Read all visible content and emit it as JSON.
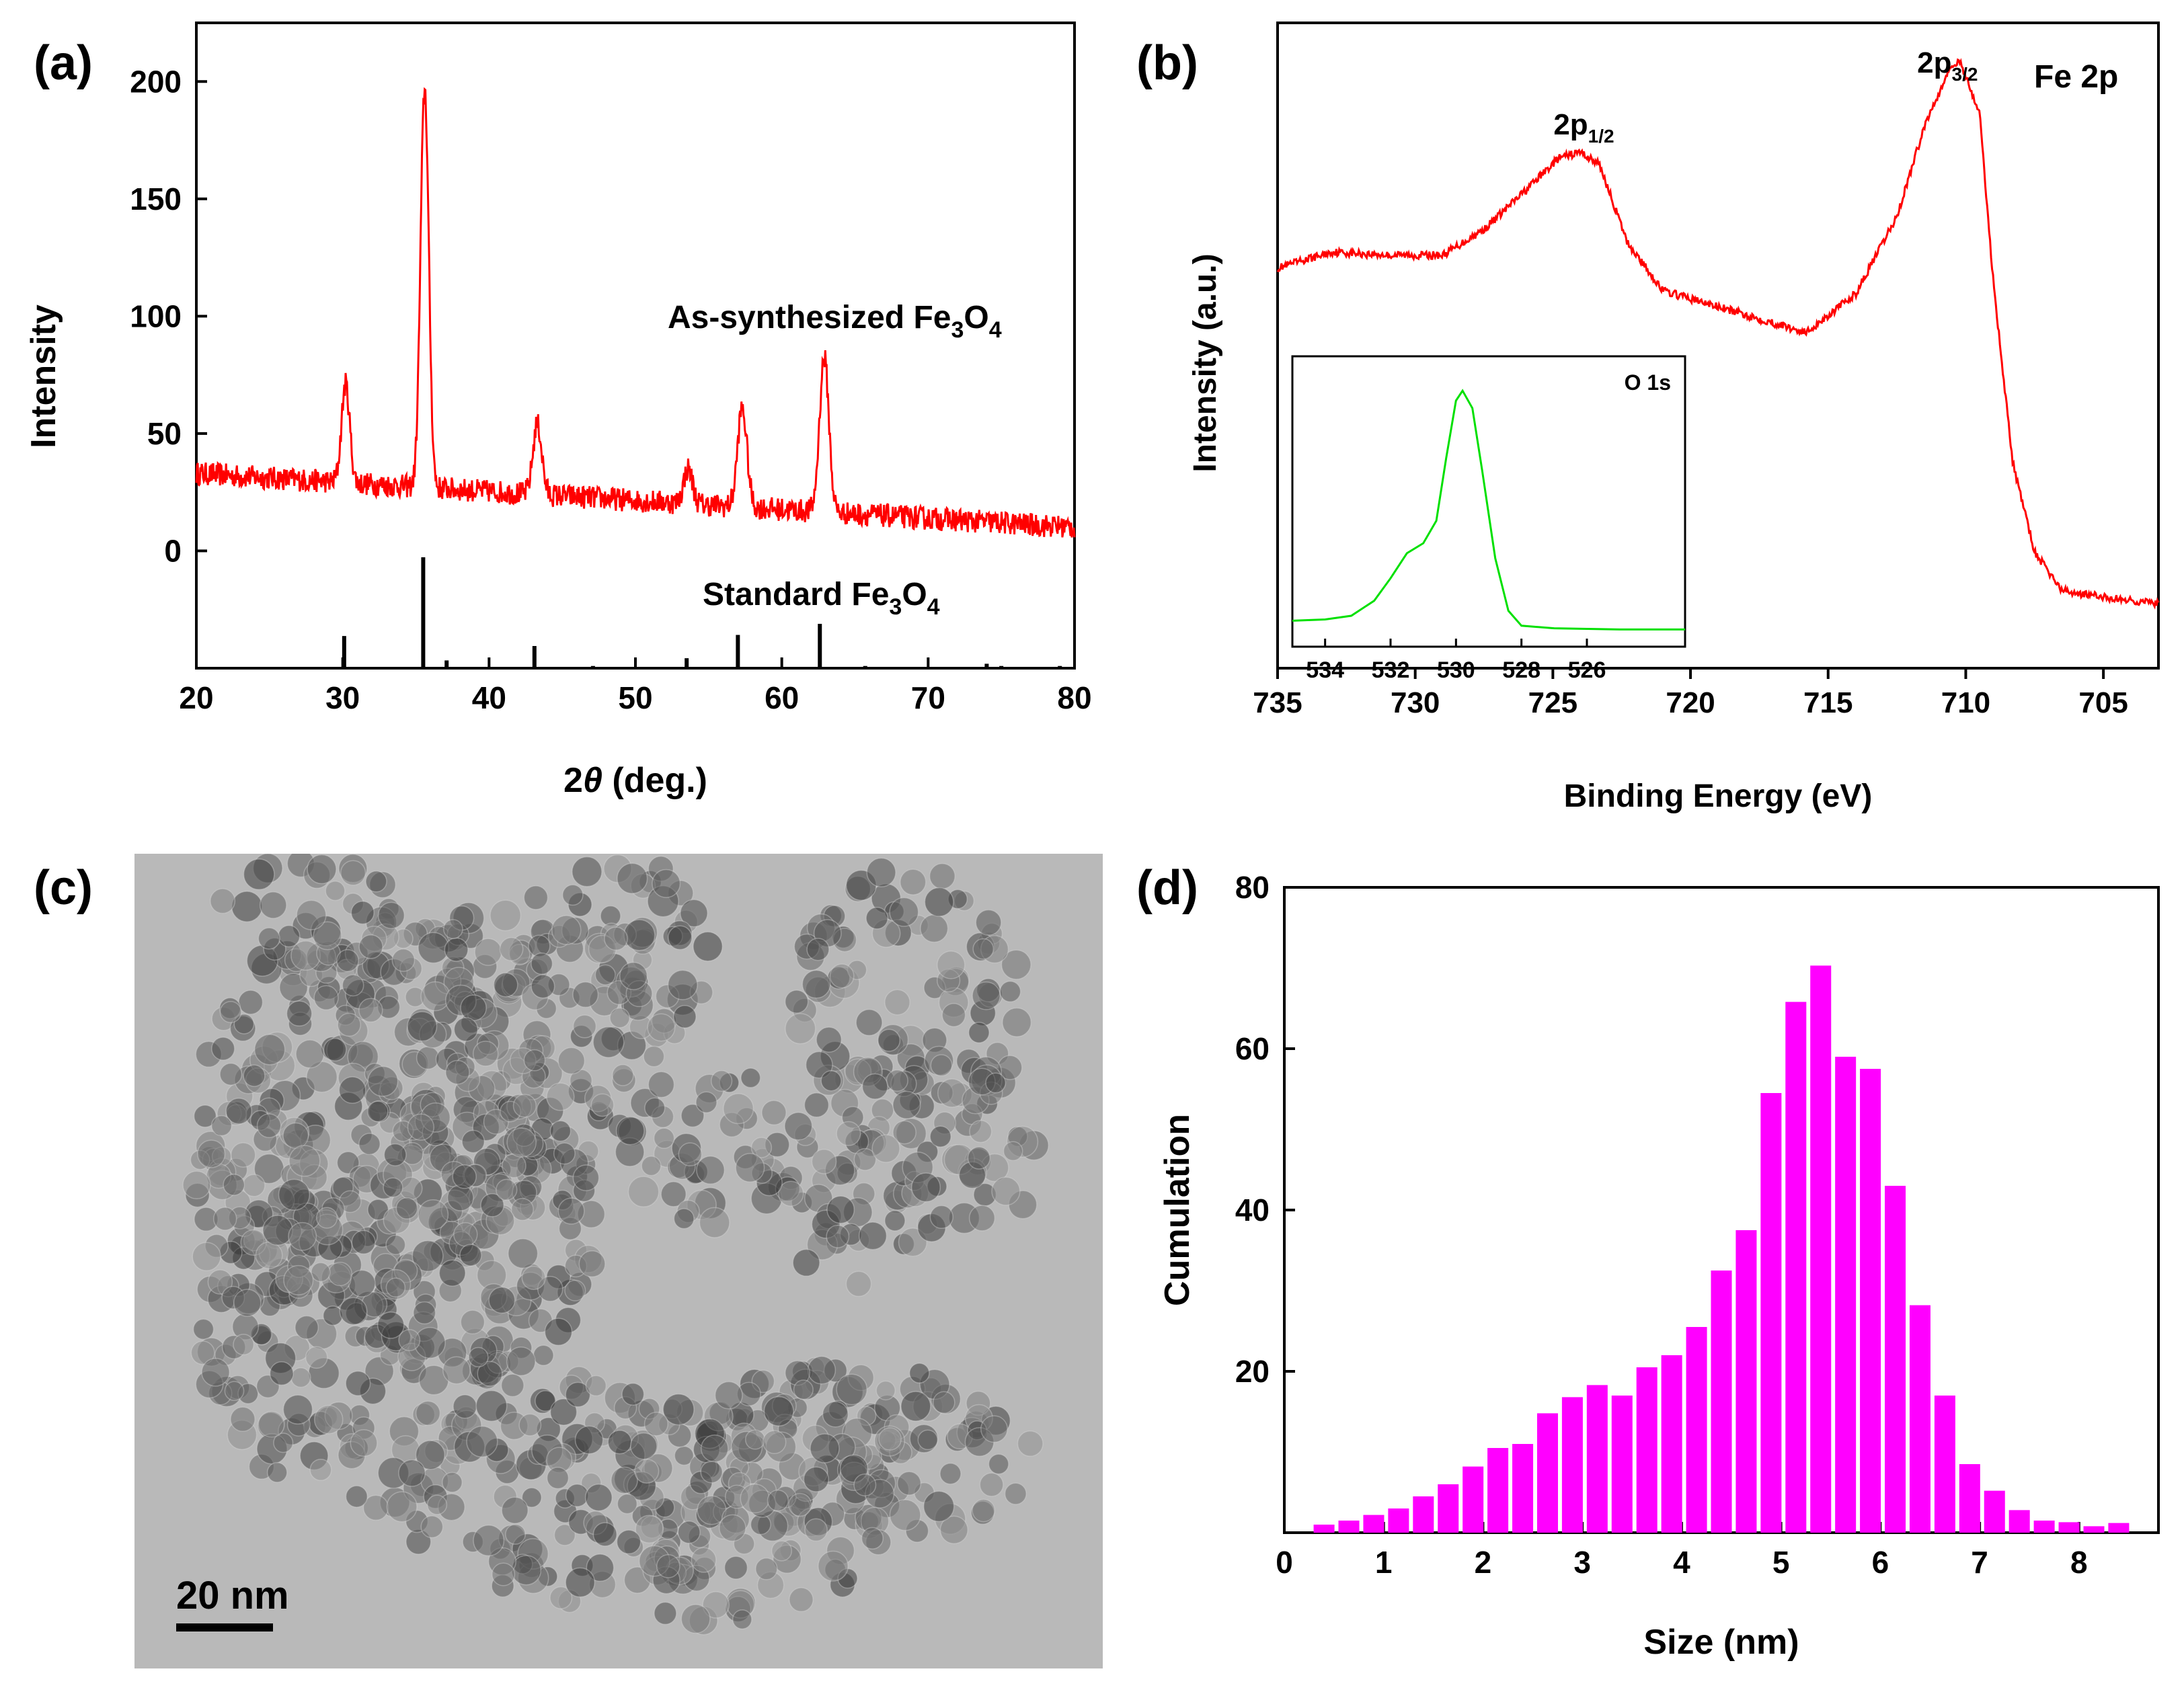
{
  "figure": {
    "panel_labels": [
      "(a)",
      "(b)",
      "(c)",
      "(d)"
    ]
  },
  "chart_data": [
    {
      "panel": "(a)",
      "type": "line",
      "xlabel_prefix": "2",
      "xlabel_symbol": "θ",
      "xlabel_suffix": " (deg.)",
      "ylabel": "Intensity",
      "xlim": [
        20,
        80
      ],
      "ylim": [
        -50,
        225
      ],
      "xticks": [
        20,
        30,
        40,
        50,
        60,
        70,
        80
      ],
      "yticks": [
        0,
        50,
        100,
        150,
        200
      ],
      "series": [
        {
          "name": "As-synthesized Fe3O4",
          "color": "#ff0000",
          "baseline_start": 33,
          "baseline_end": 10,
          "noise_amplitude": 5,
          "peaks": [
            {
              "x": 30.2,
              "height": 42,
              "width": 0.28
            },
            {
              "x": 35.6,
              "height": 170,
              "width": 0.28
            },
            {
              "x": 43.3,
              "height": 30,
              "width": 0.3
            },
            {
              "x": 53.6,
              "height": 15,
              "width": 0.3
            },
            {
              "x": 57.3,
              "height": 42,
              "width": 0.32
            },
            {
              "x": 62.9,
              "height": 66,
              "width": 0.32
            }
          ]
        }
      ],
      "reference": {
        "name": "Standard Fe3O4",
        "color": "#000000",
        "lines": [
          {
            "x": 30.1,
            "rel": 0.29
          },
          {
            "x": 35.5,
            "rel": 1.0
          },
          {
            "x": 37.1,
            "rel": 0.07
          },
          {
            "x": 43.1,
            "rel": 0.2
          },
          {
            "x": 47.1,
            "rel": 0.02
          },
          {
            "x": 53.5,
            "rel": 0.09
          },
          {
            "x": 57.0,
            "rel": 0.3
          },
          {
            "x": 62.6,
            "rel": 0.4
          },
          {
            "x": 65.7,
            "rel": 0.02
          },
          {
            "x": 74.0,
            "rel": 0.04
          },
          {
            "x": 75.0,
            "rel": 0.02
          },
          {
            "x": 79.0,
            "rel": 0.02
          }
        ]
      },
      "annotations": [
        {
          "prefix": "As-synthesized Fe",
          "sub1": "3",
          "mid": "O",
          "sub2": "4"
        },
        {
          "prefix": "Standard Fe",
          "sub1": "3",
          "mid": "O",
          "sub2": "4"
        }
      ]
    },
    {
      "panel": "(b)",
      "type": "line",
      "title": "Fe 2p",
      "xlabel": "Binding Energy (eV)",
      "ylabel": "Intensity (a.u.)",
      "xlim": [
        735,
        703
      ],
      "ylim": [
        0,
        1
      ],
      "xticks": [
        735,
        730,
        725,
        720,
        715,
        710,
        705
      ],
      "series": [
        {
          "name": "Fe 2p",
          "color": "#ff0000",
          "points": [
            [
              735,
              0.62
            ],
            [
              733,
              0.645
            ],
            [
              731,
              0.64
            ],
            [
              729,
              0.64
            ],
            [
              727.5,
              0.68
            ],
            [
              726,
              0.74
            ],
            [
              724.8,
              0.79
            ],
            [
              724,
              0.8
            ],
            [
              723.3,
              0.78
            ],
            [
              722.3,
              0.66
            ],
            [
              721,
              0.585
            ],
            [
              719,
              0.56
            ],
            [
              717,
              0.535
            ],
            [
              715.8,
              0.52
            ],
            [
              714,
              0.58
            ],
            [
              712.5,
              0.7
            ],
            [
              711.5,
              0.84
            ],
            [
              710.6,
              0.93
            ],
            [
              710.2,
              0.94
            ],
            [
              709.5,
              0.86
            ],
            [
              709,
              0.6
            ],
            [
              708.3,
              0.32
            ],
            [
              707.5,
              0.18
            ],
            [
              706.5,
              0.12
            ],
            [
              705,
              0.11
            ],
            [
              703,
              0.1
            ]
          ]
        }
      ],
      "annotations": [
        {
          "base": "2p",
          "sub": "1/2",
          "x": 724
        },
        {
          "base": "2p",
          "sub": "3/2",
          "x": 710.3
        }
      ],
      "inset": {
        "title": "O 1s",
        "xlim": [
          535,
          523
        ],
        "xticks": [
          534,
          532,
          530,
          528,
          526
        ],
        "series": [
          {
            "name": "O 1s",
            "color": "#00e000",
            "points": [
              [
                535,
                0.05
              ],
              [
                534,
                0.055
              ],
              [
                533.2,
                0.07
              ],
              [
                532.5,
                0.13
              ],
              [
                532,
                0.22
              ],
              [
                531.5,
                0.32
              ],
              [
                531,
                0.36
              ],
              [
                530.6,
                0.45
              ],
              [
                530.3,
                0.7
              ],
              [
                530,
                0.93
              ],
              [
                529.8,
                0.97
              ],
              [
                529.5,
                0.9
              ],
              [
                529.2,
                0.65
              ],
              [
                528.8,
                0.3
              ],
              [
                528.4,
                0.09
              ],
              [
                528,
                0.03
              ],
              [
                527,
                0.02
              ],
              [
                525,
                0.015
              ],
              [
                523,
                0.015
              ]
            ]
          }
        ]
      }
    },
    {
      "panel": "(d)",
      "type": "bar",
      "xlabel": "Size (nm)",
      "ylabel": "Cumulation",
      "xlim": [
        0,
        8.8
      ],
      "ylim": [
        0,
        80
      ],
      "xticks": [
        0,
        1,
        2,
        3,
        4,
        5,
        6,
        7,
        8
      ],
      "yticks": [
        20,
        40,
        60,
        80
      ],
      "bar_width": 0.21,
      "color": "#ff00ff",
      "x": [
        0.4,
        0.65,
        0.9,
        1.15,
        1.4,
        1.65,
        1.9,
        2.15,
        2.4,
        2.65,
        2.9,
        3.15,
        3.4,
        3.65,
        3.9,
        4.15,
        4.4,
        4.65,
        4.9,
        5.15,
        5.4,
        5.65,
        5.9,
        6.15,
        6.4,
        6.65,
        6.9,
        7.15,
        7.4,
        7.65,
        7.9,
        8.15,
        8.4
      ],
      "values": [
        1,
        1.5,
        2.2,
        3,
        4.5,
        6,
        8.2,
        10.5,
        11,
        14.8,
        16.8,
        18.3,
        17,
        20.5,
        22,
        25.5,
        32.5,
        37.5,
        54.5,
        65.8,
        70.3,
        59,
        57.5,
        43,
        28.2,
        17,
        8.5,
        5.2,
        2.8,
        1.5,
        1.3,
        0.8,
        1.2
      ]
    }
  ],
  "tem": {
    "scale_bar_label": "20 nm"
  }
}
